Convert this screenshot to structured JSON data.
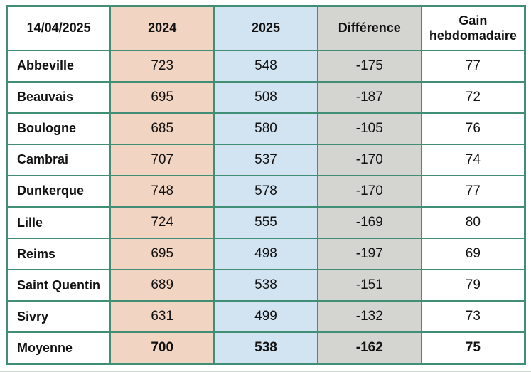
{
  "colors": {
    "border_green": "#3F8E75",
    "col_2024_fill": "#F2D4C3",
    "col_2025_fill": "#D2E4F2",
    "col_difference_fill": "#D4D5D1",
    "text": "#111111"
  },
  "table": {
    "headers": [
      "14/04/2025",
      "2024",
      "2025",
      "Différence",
      "Gain hebdomadaire"
    ],
    "rows": [
      {
        "label": "Abbeville",
        "y2024": "723",
        "y2025": "548",
        "difference": "-175",
        "gain": "77",
        "bold": false
      },
      {
        "label": "Beauvais",
        "y2024": "695",
        "y2025": "508",
        "difference": "-187",
        "gain": "72",
        "bold": false
      },
      {
        "label": "Boulogne",
        "y2024": "685",
        "y2025": "580",
        "difference": "-105",
        "gain": "76",
        "bold": false
      },
      {
        "label": "Cambrai",
        "y2024": "707",
        "y2025": "537",
        "difference": "-170",
        "gain": "74",
        "bold": false
      },
      {
        "label": "Dunkerque",
        "y2024": "748",
        "y2025": "578",
        "difference": "-170",
        "gain": "77",
        "bold": false
      },
      {
        "label": "Lille",
        "y2024": "724",
        "y2025": "555",
        "difference": "-169",
        "gain": "80",
        "bold": false
      },
      {
        "label": "Reims",
        "y2024": "695",
        "y2025": "498",
        "difference": "-197",
        "gain": "69",
        "bold": false
      },
      {
        "label": "Saint Quentin",
        "y2024": "689",
        "y2025": "538",
        "difference": "-151",
        "gain": "79",
        "bold": false
      },
      {
        "label": "Sivry",
        "y2024": "631",
        "y2025": "499",
        "difference": "-132",
        "gain": "73",
        "bold": false
      },
      {
        "label": "Moyenne",
        "y2024": "700",
        "y2025": "538",
        "difference": "-162",
        "gain": "75",
        "bold": true
      }
    ]
  },
  "chart_data": {
    "type": "table",
    "title": "14/04/2025",
    "columns": [
      "14/04/2025",
      "2024",
      "2025",
      "Différence",
      "Gain hebdomadaire"
    ],
    "categories": [
      "Abbeville",
      "Beauvais",
      "Boulogne",
      "Cambrai",
      "Dunkerque",
      "Lille",
      "Reims",
      "Saint Quentin",
      "Sivry",
      "Moyenne"
    ],
    "series": [
      {
        "name": "2024",
        "values": [
          723,
          695,
          685,
          707,
          748,
          724,
          695,
          689,
          631,
          700
        ]
      },
      {
        "name": "2025",
        "values": [
          548,
          508,
          580,
          537,
          578,
          555,
          498,
          538,
          499,
          538
        ]
      },
      {
        "name": "Différence",
        "values": [
          -175,
          -187,
          -105,
          -170,
          -170,
          -169,
          -197,
          -151,
          -132,
          -162
        ]
      },
      {
        "name": "Gain hebdomadaire",
        "values": [
          77,
          72,
          76,
          74,
          77,
          80,
          69,
          79,
          73,
          75
        ]
      }
    ],
    "layout_hints": {
      "column_fills": [
        "white",
        "peach",
        "blue",
        "gray",
        "white"
      ],
      "summary_row": "Moyenne",
      "grid": "green borders"
    }
  }
}
